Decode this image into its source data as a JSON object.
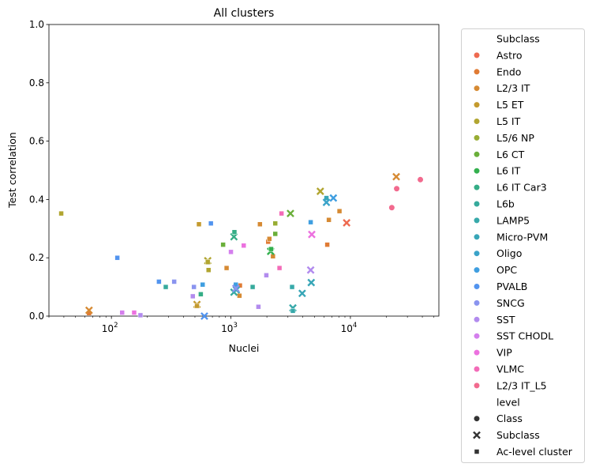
{
  "chart_data": {
    "type": "scatter",
    "title": "All clusters",
    "xlabel": "Nuclei",
    "ylabel": "Test correlation",
    "xscale": "log",
    "xlim": [
      30,
      55000
    ],
    "ylim": [
      0,
      1
    ],
    "x_ticks": [
      {
        "value": 100,
        "base": "10",
        "exp": "2"
      },
      {
        "value": 1000,
        "base": "10",
        "exp": "3"
      },
      {
        "value": 10000,
        "base": "10",
        "exp": "4"
      }
    ],
    "y_ticks": [
      "0.0",
      "0.2",
      "0.4",
      "0.6",
      "0.8",
      "1.0"
    ],
    "grid": false,
    "legend_position": "outside-right",
    "legend_hue_title": "Subclass",
    "legend_style_title": "level",
    "series": [
      {
        "name": "Astro",
        "color": "#ee6a50",
        "points": [
          {
            "x": 9300,
            "y": 0.32,
            "m": "x"
          }
        ]
      },
      {
        "name": "Endo",
        "color": "#e07b34",
        "points": [
          {
            "x": 65,
            "y": 0.01,
            "m": "s"
          },
          {
            "x": 1190,
            "y": 0.105,
            "m": "s"
          },
          {
            "x": 6400,
            "y": 0.245,
            "m": "s"
          },
          {
            "x": 2050,
            "y": 0.255,
            "m": "s"
          }
        ]
      },
      {
        "name": "L2/3 IT",
        "color": "#d68a33",
        "points": [
          {
            "x": 24200,
            "y": 0.478,
            "m": "x"
          },
          {
            "x": 65,
            "y": 0.02,
            "m": "x"
          },
          {
            "x": 8100,
            "y": 0.36,
            "m": "s"
          },
          {
            "x": 6600,
            "y": 0.33,
            "m": "s"
          },
          {
            "x": 1750,
            "y": 0.315,
            "m": "s"
          },
          {
            "x": 2100,
            "y": 0.265,
            "m": "s"
          },
          {
            "x": 2250,
            "y": 0.205,
            "m": "s"
          },
          {
            "x": 920,
            "y": 0.165,
            "m": "s"
          },
          {
            "x": 1180,
            "y": 0.07,
            "m": "s"
          }
        ]
      },
      {
        "name": "L5 ET",
        "color": "#c49a2e",
        "points": [
          {
            "x": 520,
            "y": 0.04,
            "m": "x"
          },
          {
            "x": 540,
            "y": 0.315,
            "m": "s"
          },
          {
            "x": 520,
            "y": 0.035,
            "m": "s"
          }
        ]
      },
      {
        "name": "L5 IT",
        "color": "#b1a530",
        "points": [
          {
            "x": 5600,
            "y": 0.428,
            "m": "x"
          },
          {
            "x": 640,
            "y": 0.19,
            "m": "x"
          },
          {
            "x": 38,
            "y": 0.352,
            "m": "s"
          },
          {
            "x": 650,
            "y": 0.158,
            "m": "s"
          },
          {
            "x": 640,
            "y": 0.185,
            "m": "s"
          }
        ]
      },
      {
        "name": "L5/6 NP",
        "color": "#98ad34",
        "points": [
          {
            "x": 2350,
            "y": 0.318,
            "m": "s"
          }
        ]
      },
      {
        "name": "L6 CT",
        "color": "#6aaf3a",
        "points": [
          {
            "x": 3150,
            "y": 0.352,
            "m": "x"
          },
          {
            "x": 2350,
            "y": 0.282,
            "m": "s"
          },
          {
            "x": 860,
            "y": 0.245,
            "m": "s"
          }
        ]
      },
      {
        "name": "L6 IT",
        "color": "#33b04e",
        "points": [
          {
            "x": 2150,
            "y": 0.222,
            "m": "x"
          },
          {
            "x": 2170,
            "y": 0.23,
            "m": "s"
          }
        ]
      },
      {
        "name": "L6 IT Car3",
        "color": "#35ad86",
        "points": [
          {
            "x": 1060,
            "y": 0.272,
            "m": "x"
          },
          {
            "x": 1070,
            "y": 0.288,
            "m": "s"
          },
          {
            "x": 560,
            "y": 0.075,
            "m": "s"
          }
        ]
      },
      {
        "name": "L6b",
        "color": "#36aa9c",
        "points": [
          {
            "x": 1060,
            "y": 0.082,
            "m": "x"
          },
          {
            "x": 285,
            "y": 0.1,
            "m": "s"
          },
          {
            "x": 1520,
            "y": 0.1,
            "m": "s"
          }
        ]
      },
      {
        "name": "LAMP5",
        "color": "#37a9aa",
        "points": [
          {
            "x": 3300,
            "y": 0.028,
            "m": "x"
          },
          {
            "x": 3250,
            "y": 0.1,
            "m": "s"
          },
          {
            "x": 3300,
            "y": 0.018,
            "m": "s"
          }
        ]
      },
      {
        "name": "Micro-PVM",
        "color": "#38a6b7",
        "points": [
          {
            "x": 1110,
            "y": 0.09,
            "m": "x"
          },
          {
            "x": 3950,
            "y": 0.078,
            "m": "x"
          },
          {
            "x": 4700,
            "y": 0.115,
            "m": "x"
          },
          {
            "x": 6300,
            "y": 0.405,
            "m": "s"
          }
        ]
      },
      {
        "name": "Oligo",
        "color": "#3aa3c9",
        "points": [
          {
            "x": 6300,
            "y": 0.39,
            "m": "x"
          }
        ]
      },
      {
        "name": "OPC",
        "color": "#3f9ee0",
        "points": [
          {
            "x": 7200,
            "y": 0.405,
            "m": "x"
          },
          {
            "x": 4650,
            "y": 0.322,
            "m": "s"
          },
          {
            "x": 580,
            "y": 0.108,
            "m": "s"
          },
          {
            "x": 1100,
            "y": 0.108,
            "m": "s"
          }
        ]
      },
      {
        "name": "PVALB",
        "color": "#5294ef",
        "points": [
          {
            "x": 112,
            "y": 0.2,
            "m": "s"
          },
          {
            "x": 680,
            "y": 0.318,
            "m": "s"
          },
          {
            "x": 250,
            "y": 0.118,
            "m": "s"
          },
          {
            "x": 600,
            "y": 0.0,
            "m": "x"
          }
        ]
      },
      {
        "name": "SNCG",
        "color": "#8a94ef",
        "points": [
          {
            "x": 490,
            "y": 0.1,
            "m": "s"
          },
          {
            "x": 335,
            "y": 0.118,
            "m": "s"
          },
          {
            "x": 1100,
            "y": 0.095,
            "m": "x"
          }
        ]
      },
      {
        "name": "SST",
        "color": "#b28bee",
        "points": [
          {
            "x": 480,
            "y": 0.068,
            "m": "s"
          },
          {
            "x": 1700,
            "y": 0.032,
            "m": "s"
          },
          {
            "x": 1980,
            "y": 0.14,
            "m": "s"
          },
          {
            "x": 175,
            "y": 0.003,
            "m": "s"
          },
          {
            "x": 4650,
            "y": 0.158,
            "m": "x"
          }
        ]
      },
      {
        "name": "SST CHODL",
        "color": "#d47fed",
        "points": [
          {
            "x": 1000,
            "y": 0.22,
            "m": "s"
          },
          {
            "x": 123,
            "y": 0.012,
            "m": "s"
          }
        ]
      },
      {
        "name": "VIP",
        "color": "#ec71df",
        "points": [
          {
            "x": 4750,
            "y": 0.28,
            "m": "x"
          },
          {
            "x": 155,
            "y": 0.012,
            "m": "s"
          },
          {
            "x": 1280,
            "y": 0.242,
            "m": "s"
          }
        ]
      },
      {
        "name": "VLMC",
        "color": "#f36bb8",
        "points": [
          {
            "x": 2550,
            "y": 0.165,
            "m": "s"
          },
          {
            "x": 2650,
            "y": 0.352,
            "m": "s"
          }
        ]
      },
      {
        "name": "L2/3 IT_L5",
        "color": "#f26a8e",
        "points": [
          {
            "x": 22200,
            "y": 0.372,
            "m": "o"
          },
          {
            "x": 24400,
            "y": 0.437,
            "m": "o"
          },
          {
            "x": 38500,
            "y": 0.468,
            "m": "o"
          }
        ]
      }
    ],
    "level_legend": [
      {
        "label": "Class",
        "marker": "o"
      },
      {
        "label": "Subclass",
        "marker": "x"
      },
      {
        "label": "Ac-level cluster",
        "marker": "s"
      }
    ]
  }
}
